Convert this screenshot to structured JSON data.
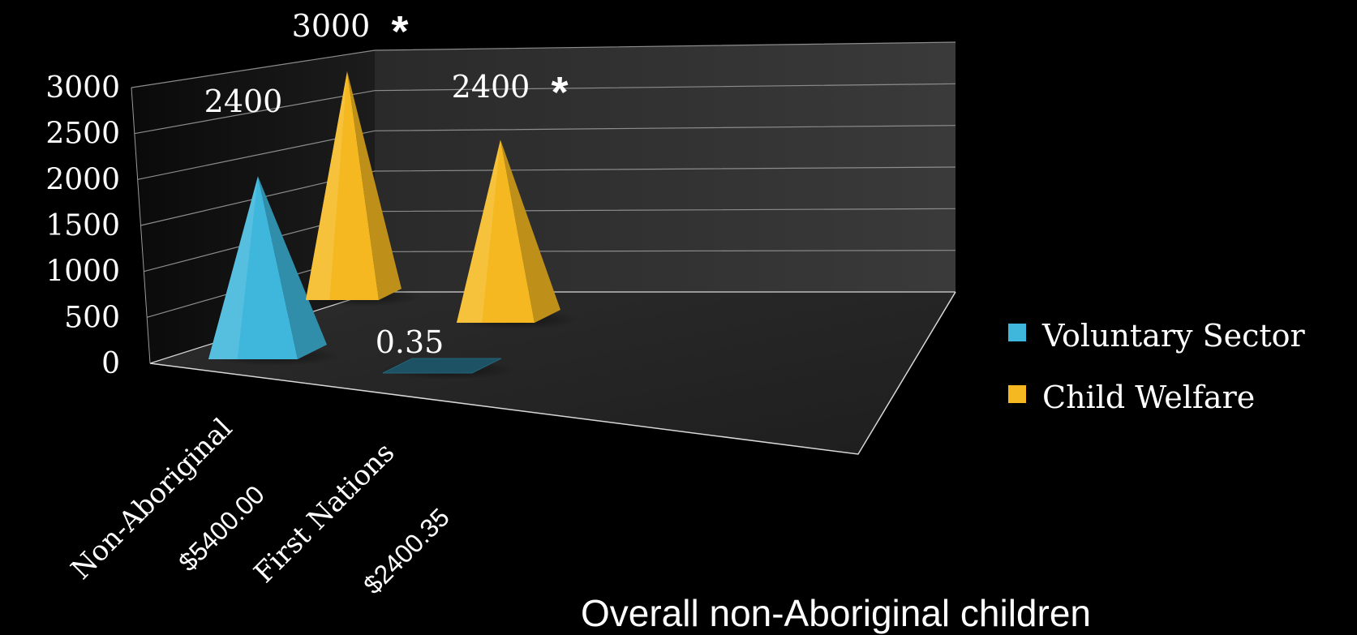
{
  "chart_data": {
    "type": "bar",
    "style": "3d-pyramid",
    "categories": [
      "Non-Aboriginal",
      "First Nations"
    ],
    "category_totals": [
      "$5400.00",
      "$2400.35"
    ],
    "series": [
      {
        "name": "Voluntary Sector",
        "color": "#3fb6db",
        "values": [
          2400,
          0.35
        ]
      },
      {
        "name": "Child Welfare",
        "color": "#f5b820",
        "values": [
          3000,
          2400
        ]
      }
    ],
    "data_labels": [
      {
        "series": 0,
        "category": 0,
        "text": "2400"
      },
      {
        "series": 1,
        "category": 0,
        "text": "3000",
        "marker": "*"
      },
      {
        "series": 0,
        "category": 1,
        "text": "0.35"
      },
      {
        "series": 1,
        "category": 1,
        "text": "2400",
        "marker": "*"
      }
    ],
    "y_ticks": [
      0,
      500,
      1000,
      1500,
      2000,
      2500,
      3000
    ],
    "ylim": [
      0,
      3000
    ],
    "grid": true,
    "legend_position": "right",
    "caption": "Overall non-Aboriginal children"
  }
}
